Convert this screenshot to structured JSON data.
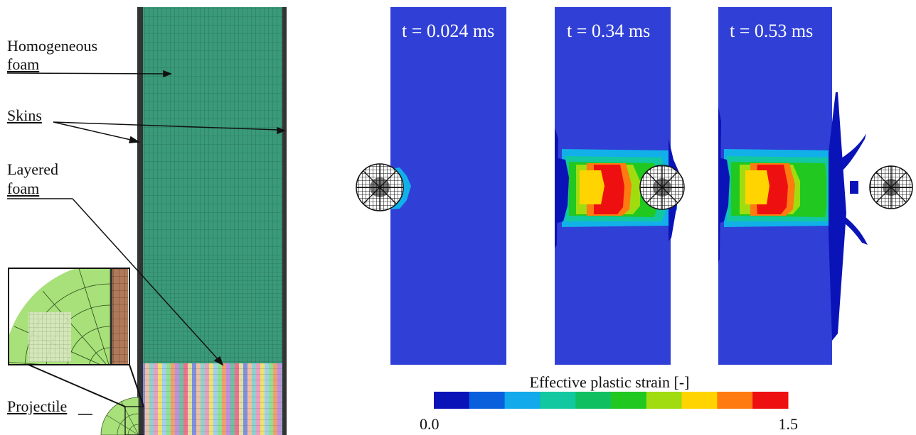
{
  "labels": {
    "homogeneous_line1": "Homogeneous",
    "homogeneous_line2": "foam",
    "skins": "Skins",
    "layered_line1": "Layered",
    "layered_line2": "foam",
    "projectile": "Projectile"
  },
  "panels": [
    {
      "time_label": "t = 0.024 ms"
    },
    {
      "time_label": "t = 0.34 ms"
    },
    {
      "time_label": "t = 0.53 ms"
    }
  ],
  "colorbar": {
    "title": "Effective plastic strain [-]",
    "min_label": "0.0",
    "max_label": "1.5",
    "colors": [
      "#0a13b8",
      "#0a5fdc",
      "#12aaea",
      "#12c8a0",
      "#10c060",
      "#20c820",
      "#a0dc10",
      "#ffd400",
      "#ff7a10",
      "#ee1010"
    ]
  },
  "colors": {
    "foam_green": "#3a9a7a",
    "skin_dark": "#333333",
    "panel_blue": "#3040d6",
    "projectile_green": "#a8e07a",
    "skin_brown": "#b07a5a"
  }
}
